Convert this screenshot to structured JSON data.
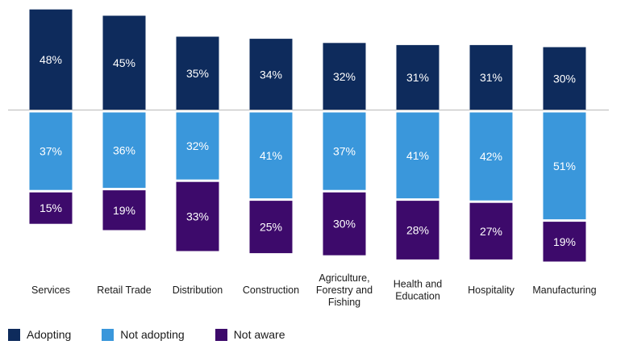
{
  "chart_data": {
    "type": "bar",
    "stacked": "diverging",
    "categories": [
      "Services",
      "Retail Trade",
      "Distribution",
      "Construction",
      "Agriculture, Forestry and Fishing",
      "Health and Education",
      "Hospitality",
      "Manufacturing"
    ],
    "category_lines": [
      [
        "Services"
      ],
      [
        "Retail Trade"
      ],
      [
        "Distribution"
      ],
      [
        "Construction"
      ],
      [
        "Agriculture,",
        "Forestry and",
        "Fishing"
      ],
      [
        "Health and",
        "Education"
      ],
      [
        "Hospitality"
      ],
      [
        "Manufacturing"
      ]
    ],
    "series": [
      {
        "name": "Adopting",
        "color": "#0e2b5c",
        "direction": "up",
        "values": [
          48,
          45,
          35,
          34,
          32,
          31,
          31,
          30
        ],
        "labels": [
          "48%",
          "45%",
          "35%",
          "34%",
          "32%",
          "31%",
          "31%",
          "30%"
        ]
      },
      {
        "name": "Not adopting",
        "color": "#3a97db",
        "direction": "down",
        "values": [
          37,
          36,
          32,
          41,
          37,
          41,
          42,
          51
        ],
        "labels": [
          "37%",
          "36%",
          "32%",
          "41%",
          "37%",
          "41%",
          "42%",
          "51%"
        ]
      },
      {
        "name": "Not aware",
        "color": "#3d0a6b",
        "direction": "down",
        "values": [
          15,
          19,
          33,
          25,
          30,
          28,
          27,
          19
        ],
        "labels": [
          "15%",
          "19%",
          "33%",
          "25%",
          "30%",
          "28%",
          "27%",
          "19%"
        ]
      }
    ],
    "legend": {
      "position": "bottom-left",
      "entries": [
        "Adopting",
        "Not adopting",
        "Not aware"
      ]
    },
    "title": "",
    "xlabel": "",
    "ylabel": "",
    "grid": false
  }
}
